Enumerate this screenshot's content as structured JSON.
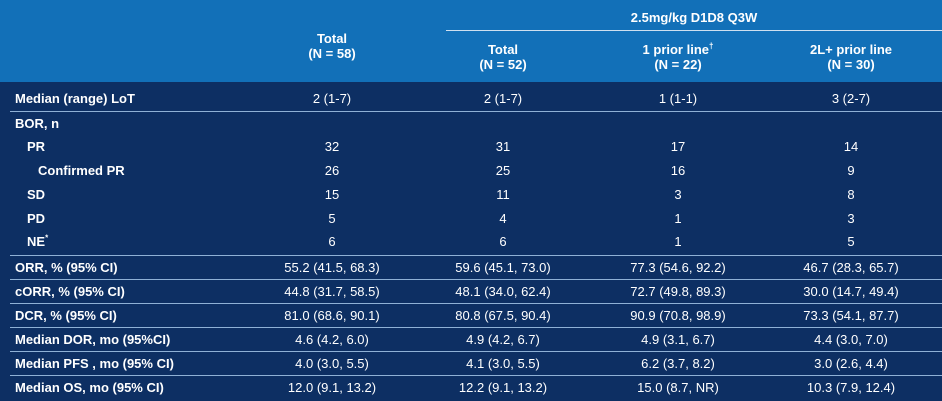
{
  "header": {
    "group_label": "2.5mg/kg D1D8 Q3W",
    "columns": [
      {
        "title": "Total",
        "n": "(N = 58)"
      },
      {
        "title": "Total",
        "n": "(N = 52)"
      },
      {
        "title": "1 prior line",
        "title_sup": "†",
        "n": "(N = 22)"
      },
      {
        "title": "2L+ prior line",
        "n": "(N = 30)"
      }
    ]
  },
  "rows": [
    {
      "label": "Median (range) LoT",
      "values": [
        "2 (1-7)",
        "2 (1-7)",
        "1 (1-1)",
        "3 (2-7)"
      ]
    },
    {
      "label": "BOR, n",
      "values": [
        "",
        "",
        "",
        ""
      ]
    },
    {
      "label": "PR",
      "values": [
        "32",
        "31",
        "17",
        "14"
      ]
    },
    {
      "label": "Confirmed PR",
      "values": [
        "26",
        "25",
        "16",
        "9"
      ]
    },
    {
      "label": "SD",
      "values": [
        "15",
        "11",
        "3",
        "8"
      ]
    },
    {
      "label": "PD",
      "values": [
        "5",
        "4",
        "1",
        "3"
      ]
    },
    {
      "label": "NE",
      "label_sup": "*",
      "values": [
        "6",
        "6",
        "1",
        "5"
      ]
    },
    {
      "label": "ORR, % (95% CI)",
      "values": [
        "55.2 (41.5, 68.3)",
        "59.6 (45.1, 73.0)",
        "77.3 (54.6, 92.2)",
        "46.7 (28.3, 65.7)"
      ]
    },
    {
      "label": "cORR, % (95% CI)",
      "values": [
        "44.8 (31.7, 58.5)",
        "48.1 (34.0, 62.4)",
        "72.7 (49.8, 89.3)",
        "30.0 (14.7, 49.4)"
      ]
    },
    {
      "label": "DCR, % (95% CI)",
      "values": [
        "81.0 (68.6, 90.1)",
        "80.8 (67.5, 90.4)",
        "90.9 (70.8, 98.9)",
        "73.3 (54.1, 87.7)"
      ]
    },
    {
      "label": "Median DOR, mo (95%CI)",
      "values": [
        "4.6 (4.2, 6.0)",
        "4.9 (4.2, 6.7)",
        "4.9 (3.1, 6.7)",
        "4.4 (3.0, 7.0)"
      ]
    },
    {
      "label": "Median PFS , mo (95% CI)",
      "values": [
        "4.0 (3.0, 5.5)",
        "4.1 (3.0, 5.5)",
        "6.2 (3.7, 8.2)",
        "3.0 (2.6, 4.4)"
      ]
    },
    {
      "label": "Median OS, mo (95% CI)",
      "values": [
        "12.0 (9.1, 13.2)",
        "12.2 (9.1, 13.2)",
        "15.0 (8.7, NR)",
        "10.3 (7.9, 12.4)"
      ]
    }
  ],
  "colors": {
    "header_band": "#1270b8",
    "body_background": "#0d2f63",
    "rule": "#8fb1d6"
  }
}
